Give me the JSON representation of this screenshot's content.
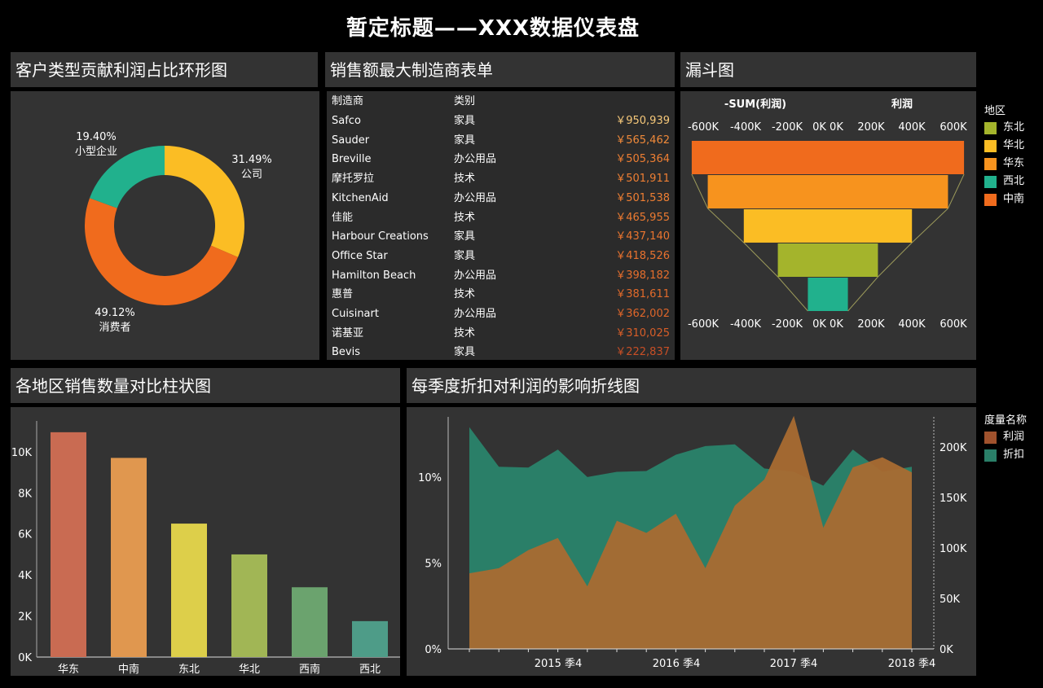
{
  "page_title": "暂定标题——XXX数据仪表盘",
  "panels": {
    "donut": "客户类型贡献利润占比环形图",
    "table": "销售额最大制造商表单",
    "funnel": "漏斗图",
    "bars": "各地区销售数量对比柱状图",
    "area": "每季度折扣对利润的影响折线图"
  },
  "donut": {
    "slices": [
      {
        "name": "公司",
        "pct_label": "31.49%",
        "value": 31.49,
        "color": "#fbbd24"
      },
      {
        "name": "消费者",
        "pct_label": "49.12%",
        "value": 49.12,
        "color": "#f06b1d"
      },
      {
        "name": "小型企业",
        "pct_label": "19.40%",
        "value": 19.4,
        "color": "#21b18d"
      }
    ]
  },
  "table": {
    "headers": [
      "制造商",
      "类别",
      ""
    ],
    "rows": [
      {
        "maker": "Safco",
        "category": "家具",
        "amount": "￥950,939",
        "color": "#f7c97a"
      },
      {
        "maker": "Sauder",
        "category": "家具",
        "amount": "￥565,462",
        "color": "#f08a3a"
      },
      {
        "maker": "Breville",
        "category": "办公用品",
        "amount": "￥505,364",
        "color": "#ef7f33"
      },
      {
        "maker": "摩托罗拉",
        "category": "技术",
        "amount": "￥501,911",
        "color": "#ef7f33"
      },
      {
        "maker": "KitchenAid",
        "category": "办公用品",
        "amount": "￥501,538",
        "color": "#ef7f33"
      },
      {
        "maker": "佳能",
        "category": "技术",
        "amount": "￥465,955",
        "color": "#ec7a31"
      },
      {
        "maker": "Harbour Creations",
        "category": "家具",
        "amount": "￥437,140",
        "color": "#ea752f"
      },
      {
        "maker": "Office Star",
        "category": "家具",
        "amount": "￥418,526",
        "color": "#e9722e"
      },
      {
        "maker": "Hamilton Beach",
        "category": "办公用品",
        "amount": "￥398,182",
        "color": "#e66e2c"
      },
      {
        "maker": "惠普",
        "category": "技术",
        "amount": "￥381,611",
        "color": "#e36b2b"
      },
      {
        "maker": "Cuisinart",
        "category": "办公用品",
        "amount": "￥362,002",
        "color": "#df662a"
      },
      {
        "maker": "诺基亚",
        "category": "技术",
        "amount": "￥310,025",
        "color": "#d85e28"
      },
      {
        "maker": "Bevis",
        "category": "家具",
        "amount": "￥222,837",
        "color": "#c84f26"
      }
    ]
  },
  "funnel": {
    "left_label": "-SUM(利润)",
    "right_label": "利润",
    "ticks": [
      "-600K",
      "-400K",
      "-200K",
      "0K 0K",
      "200K",
      "400K",
      "600K"
    ],
    "stages": [
      {
        "region": "中南",
        "value": 680,
        "color": "#f06b1d"
      },
      {
        "region": "华东",
        "value": 600,
        "color": "#f7931e"
      },
      {
        "region": "华北",
        "value": 420,
        "color": "#fbbd24"
      },
      {
        "region": "东北",
        "value": 250,
        "color": "#a4b42c"
      },
      {
        "region": "西北",
        "value": 100,
        "color": "#21b18d"
      }
    ],
    "legend_title": "地区",
    "legend": [
      {
        "label": "东北",
        "color": "#a4b42c"
      },
      {
        "label": "华北",
        "color": "#fbbd24"
      },
      {
        "label": "华东",
        "color": "#f7931e"
      },
      {
        "label": "西北",
        "color": "#21b18d"
      },
      {
        "label": "中南",
        "color": "#f06b1d"
      }
    ]
  },
  "chart_data": [
    {
      "type": "bar",
      "categories": [
        "华东",
        "中南",
        "东北",
        "华北",
        "西南",
        "西北"
      ],
      "values": [
        10950,
        9700,
        6500,
        5000,
        3400,
        1750
      ],
      "colors": [
        "#c96b52",
        "#e0974f",
        "#ddcf4a",
        "#a1b655",
        "#6ba36e",
        "#4e9c88"
      ],
      "ylim": [
        0,
        11500
      ],
      "yticks": [
        0,
        2000,
        4000,
        6000,
        8000,
        10000
      ],
      "ytick_labels": [
        "0K",
        "2K",
        "4K",
        "6K",
        "8K",
        "10K"
      ]
    },
    {
      "type": "area",
      "x_ticks": [
        "2015 季4",
        "2016 季4",
        "2017 季4",
        "2018 季4"
      ],
      "left_axis": {
        "ticks": [
          0,
          5,
          10
        ],
        "labels": [
          "0%",
          "5%",
          "10%"
        ],
        "max": 13.5
      },
      "right_axis": {
        "ticks": [
          0,
          50000,
          100000,
          150000,
          200000
        ],
        "labels": [
          "0K",
          "50K",
          "100K",
          "150K",
          "200K"
        ],
        "max": 230000
      },
      "series": [
        {
          "name": "折扣",
          "color": "#2a7f68",
          "values": [
            12.9,
            10.6,
            10.55,
            11.6,
            10.0,
            10.3,
            10.35,
            11.3,
            11.8,
            11.9,
            10.5,
            10.3,
            9.5,
            11.6,
            10.3,
            10.6
          ]
        },
        {
          "name": "利润",
          "color": "#a96b32",
          "values": [
            75000,
            80000,
            98000,
            110000,
            62000,
            127000,
            115000,
            134000,
            80000,
            142000,
            168000,
            231000,
            120000,
            180000,
            190000,
            175000
          ]
        }
      ],
      "legend_title": "度量名称"
    }
  ]
}
